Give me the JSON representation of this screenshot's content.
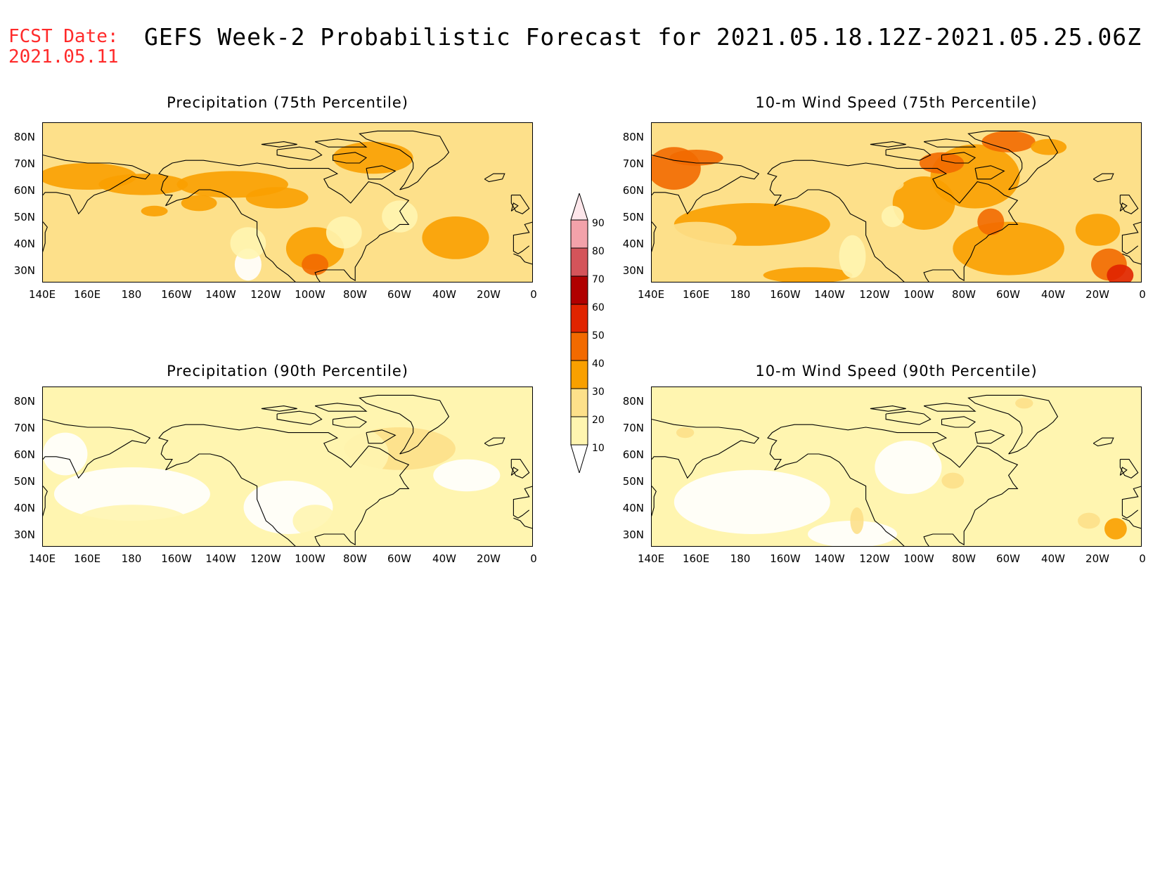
{
  "header": {
    "fcst_label": "FCST Date:",
    "fcst_date": "2021.05.11",
    "title": "GEFS Week-2 Probabilistic Forecast for 2021.05.18.12Z-2021.05.25.06Z"
  },
  "panels": [
    {
      "title": "Precipitation (75th Percentile)",
      "field": "precip",
      "pct": 75
    },
    {
      "title": "10-m Wind Speed (75th Percentile)",
      "field": "wind",
      "pct": 75
    },
    {
      "title": "Precipitation (90th Percentile)",
      "field": "precip",
      "pct": 90
    },
    {
      "title": "10-m Wind Speed (90th Percentile)",
      "field": "wind",
      "pct": 90
    }
  ],
  "axes": {
    "lat_labels": [
      "80N",
      "70N",
      "60N",
      "50N",
      "40N",
      "30N"
    ],
    "lon_labels": [
      "140E",
      "160E",
      "180",
      "160W",
      "140W",
      "120W",
      "100W",
      "80W",
      "60W",
      "40W",
      "20W",
      "0"
    ]
  },
  "colorbar": {
    "levels": [
      "10",
      "20",
      "30",
      "40",
      "50",
      "60",
      "70",
      "80",
      "90"
    ],
    "colors": [
      "#ffffff",
      "#fff5b0",
      "#fde08a",
      "#f9a000",
      "#f26a00",
      "#e02400",
      "#b00000",
      "#d4545a",
      "#f3a2aa",
      "#fde6ea"
    ]
  }
}
